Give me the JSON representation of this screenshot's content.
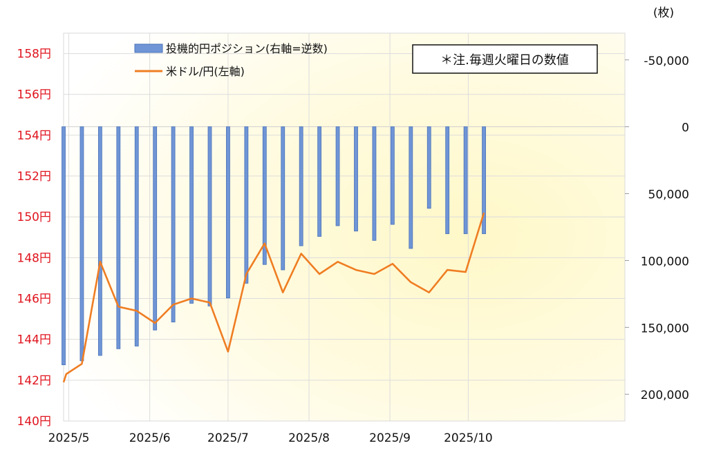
{
  "chart_data": {
    "type": "bar+line",
    "note": "＊注.毎週火曜日の数値",
    "right_axis_unit": "(枚)",
    "series": [
      {
        "name": "投機的円ポジション(右軸=逆数)",
        "type": "bar",
        "axis": "right",
        "color": "#6f95d6",
        "x": [
          "2025-04-29",
          "2025-05-06",
          "2025-05-13",
          "2025-05-20",
          "2025-05-27",
          "2025-06-03",
          "2025-06-10",
          "2025-06-17",
          "2025-06-24",
          "2025-07-01",
          "2025-07-08",
          "2025-07-15",
          "2025-07-22",
          "2025-07-29",
          "2025-08-05",
          "2025-08-12",
          "2025-08-19",
          "2025-08-26",
          "2025-09-02",
          "2025-09-09",
          "2025-09-16",
          "2025-09-23",
          "2025-09-30",
          "2025-10-07"
        ],
        "values": [
          178000,
          175000,
          171000,
          166000,
          164000,
          152000,
          146000,
          132000,
          134000,
          128000,
          117000,
          103000,
          107000,
          89000,
          82000,
          74000,
          78000,
          85000,
          73000,
          91000,
          61000,
          80000,
          80000,
          80000
        ]
      },
      {
        "name": "米ドル/円(左軸)",
        "type": "line",
        "axis": "left",
        "color": "#ef7d22",
        "x": [
          "2025-04-29",
          "2025-04-30",
          "2025-05-06",
          "2025-05-13",
          "2025-05-20",
          "2025-05-27",
          "2025-06-03",
          "2025-06-10",
          "2025-06-17",
          "2025-06-24",
          "2025-07-01",
          "2025-07-08",
          "2025-07-15",
          "2025-07-22",
          "2025-07-29",
          "2025-08-05",
          "2025-08-12",
          "2025-08-19",
          "2025-08-26",
          "2025-09-02",
          "2025-09-09",
          "2025-09-16",
          "2025-09-23",
          "2025-09-30",
          "2025-10-07"
        ],
        "values": [
          141.9,
          142.3,
          142.8,
          147.8,
          145.6,
          145.4,
          144.8,
          145.7,
          146.0,
          145.8,
          143.4,
          147.2,
          148.7,
          146.3,
          148.2,
          147.2,
          147.8,
          147.4,
          147.2,
          147.7,
          146.8,
          146.3,
          147.4,
          147.3,
          150.2
        ]
      }
    ],
    "left_axis": {
      "min": 140,
      "max": 159,
      "ticks": [
        "140円",
        "142円",
        "144円",
        "146円",
        "148円",
        "150円",
        "152円",
        "154円",
        "156円",
        "158円"
      ]
    },
    "right_axis": {
      "min": -70000,
      "max": 220000,
      "reversed": true,
      "ticks": [
        "-50,000",
        "0",
        "50,000",
        "100,000",
        "150,000",
        "200,000"
      ]
    },
    "x_axis": {
      "min": "2025-04-29",
      "max": "2025-11-30",
      "ticks": [
        {
          "label": "2025/5",
          "date": "2025-05-01"
        },
        {
          "label": "2025/6",
          "date": "2025-06-01"
        },
        {
          "label": "2025/7",
          "date": "2025-07-01"
        },
        {
          "label": "2025/8",
          "date": "2025-08-01"
        },
        {
          "label": "2025/9",
          "date": "2025-09-01"
        },
        {
          "label": "2025/10",
          "date": "2025-10-01"
        }
      ]
    },
    "grid": true,
    "legend": "top-left"
  }
}
